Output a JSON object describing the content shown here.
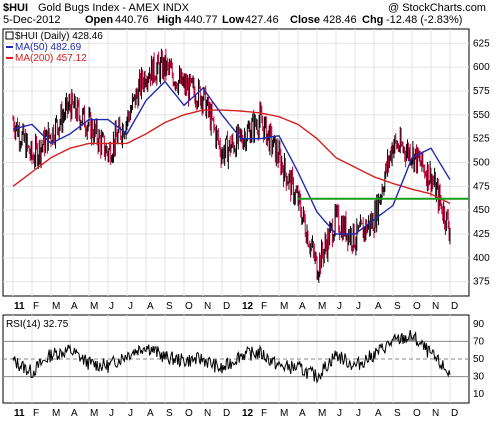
{
  "header": {
    "symbol": "$HUI",
    "name": "Gold Bugs Index - AMEX  INDX",
    "watermark": "@ StockCharts.com",
    "date": "5-Dec-2012",
    "open_label": "Open",
    "open": "440.76",
    "high_label": "High",
    "high": "440.77",
    "low_label": "Low",
    "low": "427.46",
    "close_label": "Close",
    "close": "428.46",
    "chg_label": "Chg",
    "chg": "-12.48 (-2.83%)"
  },
  "legend": [
    {
      "text": "$HUI (Daily) 428.46",
      "color": "#000000"
    },
    {
      "text": "MA(50) 482.69",
      "color": "#1f2bb0"
    },
    {
      "text": "MA(200) 457.12",
      "color": "#d42020"
    }
  ],
  "rsi_legend": "RSI(14) 32.75",
  "colors": {
    "ma50": "#1f2bb0",
    "ma200": "#d42020",
    "support": "#1a9c1a",
    "down_bar": "#c0003c",
    "up_bar": "#000000",
    "rsi_fill": "#808080"
  },
  "chart_data": [
    {
      "type": "line",
      "title": "Gold Bugs Index - AMEX INDX",
      "x_ticks": [
        "11",
        "F",
        "M",
        "A",
        "M",
        "J",
        "J",
        "A",
        "S",
        "O",
        "N",
        "D",
        "12",
        "F",
        "M",
        "A",
        "M",
        "J",
        "J",
        "A",
        "S",
        "O",
        "N",
        "D"
      ],
      "y_ticks": [
        375,
        400,
        425,
        450,
        475,
        500,
        525,
        550,
        575,
        600,
        625
      ],
      "ylim": [
        360,
        640
      ],
      "grid": true,
      "series": [
        {
          "name": "$HUI (Daily)",
          "last": 428.46,
          "x": [
            "2011-01",
            "2011-02",
            "2011-03",
            "2011-04",
            "2011-05",
            "2011-06",
            "2011-07",
            "2011-08",
            "2011-09",
            "2011-10",
            "2011-11",
            "2011-12",
            "2012-01",
            "2012-02",
            "2012-03",
            "2012-04",
            "2012-05",
            "2012-06",
            "2012-07",
            "2012-08",
            "2012-09",
            "2012-10",
            "2012-11",
            "2012-12"
          ],
          "y": [
            545,
            505,
            530,
            560,
            540,
            510,
            545,
            595,
            600,
            580,
            570,
            510,
            525,
            545,
            505,
            460,
            390,
            440,
            420,
            440,
            520,
            510,
            485,
            430
          ]
        },
        {
          "name": "MA(50)",
          "last": 482.69,
          "x": [
            "2011-01",
            "2011-02",
            "2011-03",
            "2011-04",
            "2011-05",
            "2011-06",
            "2011-07",
            "2011-08",
            "2011-09",
            "2011-10",
            "2011-11",
            "2011-12",
            "2012-01",
            "2012-02",
            "2012-03",
            "2012-04",
            "2012-05",
            "2012-06",
            "2012-07",
            "2012-08",
            "2012-09",
            "2012-10",
            "2012-11",
            "2012-12"
          ],
          "y": [
            535,
            540,
            520,
            530,
            545,
            545,
            530,
            565,
            585,
            560,
            578,
            550,
            525,
            525,
            528,
            490,
            448,
            425,
            425,
            440,
            455,
            505,
            515,
            482
          ]
        },
        {
          "name": "MA(200)",
          "last": 457.12,
          "x": [
            "2011-01",
            "2011-02",
            "2011-03",
            "2011-04",
            "2011-05",
            "2011-06",
            "2011-07",
            "2011-08",
            "2011-09",
            "2011-10",
            "2011-11",
            "2011-12",
            "2012-01",
            "2012-02",
            "2012-03",
            "2012-04",
            "2012-05",
            "2012-06",
            "2012-07",
            "2012-08",
            "2012-09",
            "2012-10",
            "2012-11",
            "2012-12"
          ],
          "y": [
            475,
            490,
            505,
            515,
            520,
            520,
            520,
            530,
            542,
            550,
            555,
            555,
            554,
            552,
            548,
            540,
            525,
            505,
            495,
            485,
            478,
            472,
            467,
            457
          ]
        }
      ],
      "support_level": 462
    },
    {
      "type": "line",
      "title": "RSI(14)",
      "y_ticks": [
        10,
        30,
        50,
        70,
        90
      ],
      "ylim": [
        0,
        100
      ],
      "reference_lines": [
        30,
        50,
        70
      ],
      "series": [
        {
          "name": "RSI(14)",
          "last": 32.75,
          "x": [
            "2011-01",
            "2011-02",
            "2011-03",
            "2011-04",
            "2011-05",
            "2011-06",
            "2011-07",
            "2011-08",
            "2011-09",
            "2011-10",
            "2011-11",
            "2011-12",
            "2012-01",
            "2012-02",
            "2012-03",
            "2012-04",
            "2012-05",
            "2012-06",
            "2012-07",
            "2012-08",
            "2012-09",
            "2012-10",
            "2012-11",
            "2012-12"
          ],
          "y": [
            48,
            35,
            55,
            60,
            45,
            42,
            55,
            65,
            52,
            48,
            50,
            38,
            55,
            57,
            42,
            40,
            30,
            55,
            42,
            55,
            70,
            76,
            55,
            33
          ]
        }
      ]
    }
  ]
}
